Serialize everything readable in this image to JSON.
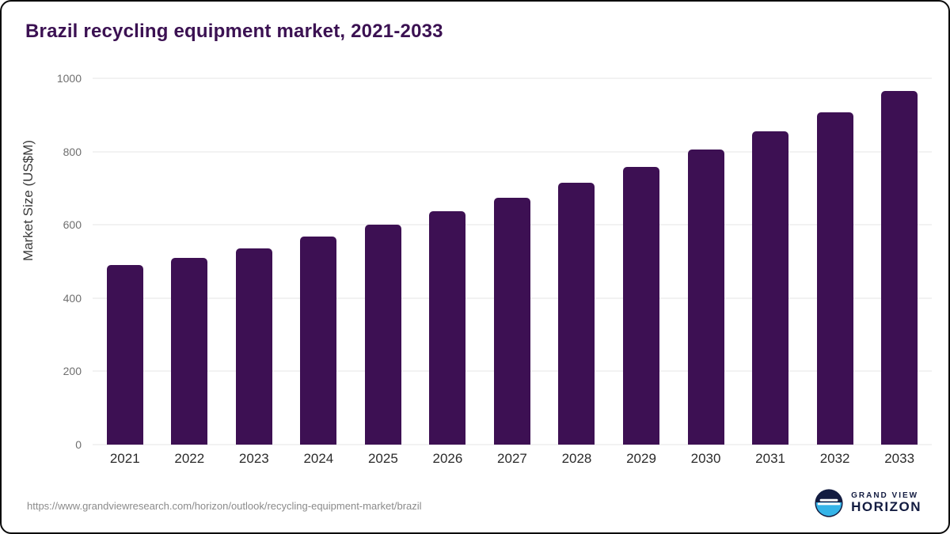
{
  "title": "Brazil recycling equipment market, 2021-2033",
  "source": {
    "url": "https://www.grandviewresearch.com/horizon/outlook/recycling-equipment-market/brazil"
  },
  "logo": {
    "top_text": "GRAND VIEW",
    "bottom_text": "HORIZON",
    "mark": "horizon-circle-icon"
  },
  "colors": {
    "bar": "#3d1053",
    "title": "#3b1152",
    "grid": "#e6e6e6",
    "tick_label": "#6f6f6f",
    "logo_navy": "#131c41",
    "logo_blue": "#35b4e8"
  },
  "chart_data": {
    "type": "bar",
    "title": "Brazil recycling equipment market, 2021-2033",
    "categories": [
      "2021",
      "2022",
      "2023",
      "2024",
      "2025",
      "2026",
      "2027",
      "2028",
      "2029",
      "2030",
      "2031",
      "2032",
      "2033"
    ],
    "values": [
      490,
      510,
      536,
      567,
      601,
      637,
      674,
      714,
      758,
      806,
      856,
      908,
      965
    ],
    "xlabel": "",
    "ylabel": "Market Size (US$M)",
    "ylim": [
      0,
      1000
    ],
    "yticks": [
      0,
      200,
      400,
      600,
      800,
      1000
    ],
    "grid": true,
    "legend": false,
    "bar_color": "#3d1053"
  }
}
